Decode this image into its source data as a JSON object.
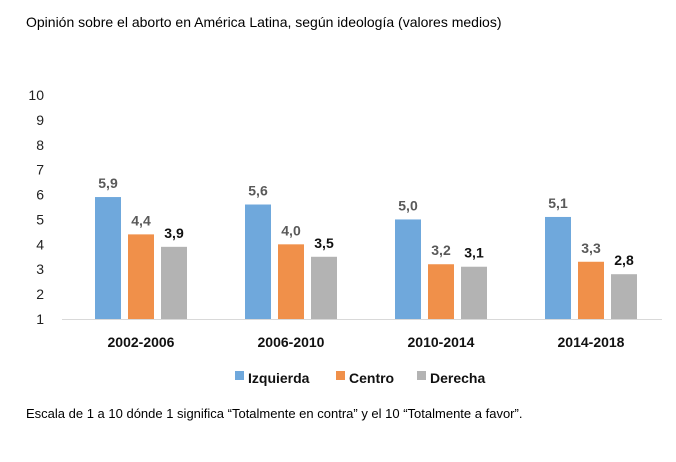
{
  "title": "Opinión sobre el aborto en América Latina, según ideología (valores medios)",
  "note": "Escala de 1 a 10 dónde 1 significa “Totalmente en contra” y el 10 “Totalmente a favor”.",
  "chart_data": {
    "type": "bar",
    "title": "Opinión sobre el aborto en América Latina, según ideología (valores medios)",
    "xlabel": "",
    "ylabel": "",
    "categories": [
      "2002-2006",
      "2006-2010",
      "2010-2014",
      "2014-2018"
    ],
    "series": [
      {
        "name": "Izquierda",
        "color": "#6fa8dc",
        "label_color": "#595959",
        "values": [
          5.9,
          5.6,
          5.0,
          5.1
        ],
        "labels": [
          "5,9",
          "5,6",
          "5,0",
          "5,1"
        ]
      },
      {
        "name": "Centro",
        "color": "#f0904a",
        "label_color": "#595959",
        "values": [
          4.4,
          4.0,
          3.2,
          3.3
        ],
        "labels": [
          "4,4",
          "4,0",
          "3,2",
          "3,3"
        ]
      },
      {
        "name": "Derecha",
        "color": "#b3b3b3",
        "label_color": "#111111",
        "values": [
          3.9,
          3.5,
          3.1,
          2.8
        ],
        "labels": [
          "3,9",
          "3,5",
          "3,1",
          "2,8"
        ]
      }
    ],
    "ylim": [
      1,
      10
    ],
    "yticks": [
      "1",
      "2",
      "3",
      "4",
      "5",
      "6",
      "7",
      "8",
      "9",
      "10"
    ],
    "grid": false,
    "legend": "bottom-center",
    "axis_color": "#d9d9d9"
  }
}
